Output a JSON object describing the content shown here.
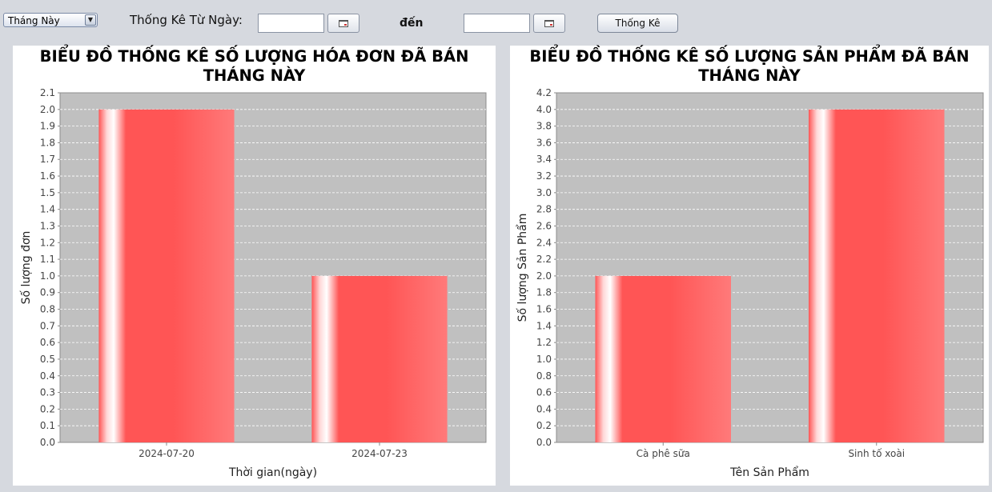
{
  "toolbar": {
    "period_select": "Tháng Này",
    "from_label": "Thống Kê Từ Ngày:",
    "from_date": "",
    "to_label": "đến",
    "to_date": "",
    "submit_label": "Thống Kê"
  },
  "colors": {
    "bar": "#ff5555",
    "plot_bg": "#c0c0c0",
    "panel_bg": "#ffffff",
    "window_bg": "#d6d9df"
  },
  "chart_data": [
    {
      "type": "bar",
      "title": "BIỂU ĐỒ THỐNG KÊ SỐ LƯỢNG HÓA ĐƠN ĐÃ BÁN THÁNG NÀY",
      "xlabel": "Thời gian(ngày)",
      "ylabel": "Số lượng đơn",
      "categories": [
        "2024-07-20",
        "2024-07-23"
      ],
      "values": [
        2,
        1
      ],
      "ylim": [
        0,
        2.1
      ],
      "ytick_step": 0.1,
      "grid": true
    },
    {
      "type": "bar",
      "title": "BIỂU ĐỒ THỐNG KÊ SỐ LƯỢNG SẢN PHẨM ĐÃ BÁN THÁNG NÀY",
      "xlabel": "Tên Sản Phẩm",
      "ylabel": "Số lượng Sản Phẩm",
      "categories": [
        "Cà phê sữa",
        "Sinh tố xoài"
      ],
      "values": [
        2,
        4
      ],
      "ylim": [
        0,
        4.2
      ],
      "ytick_step": 0.2,
      "grid": true
    }
  ]
}
